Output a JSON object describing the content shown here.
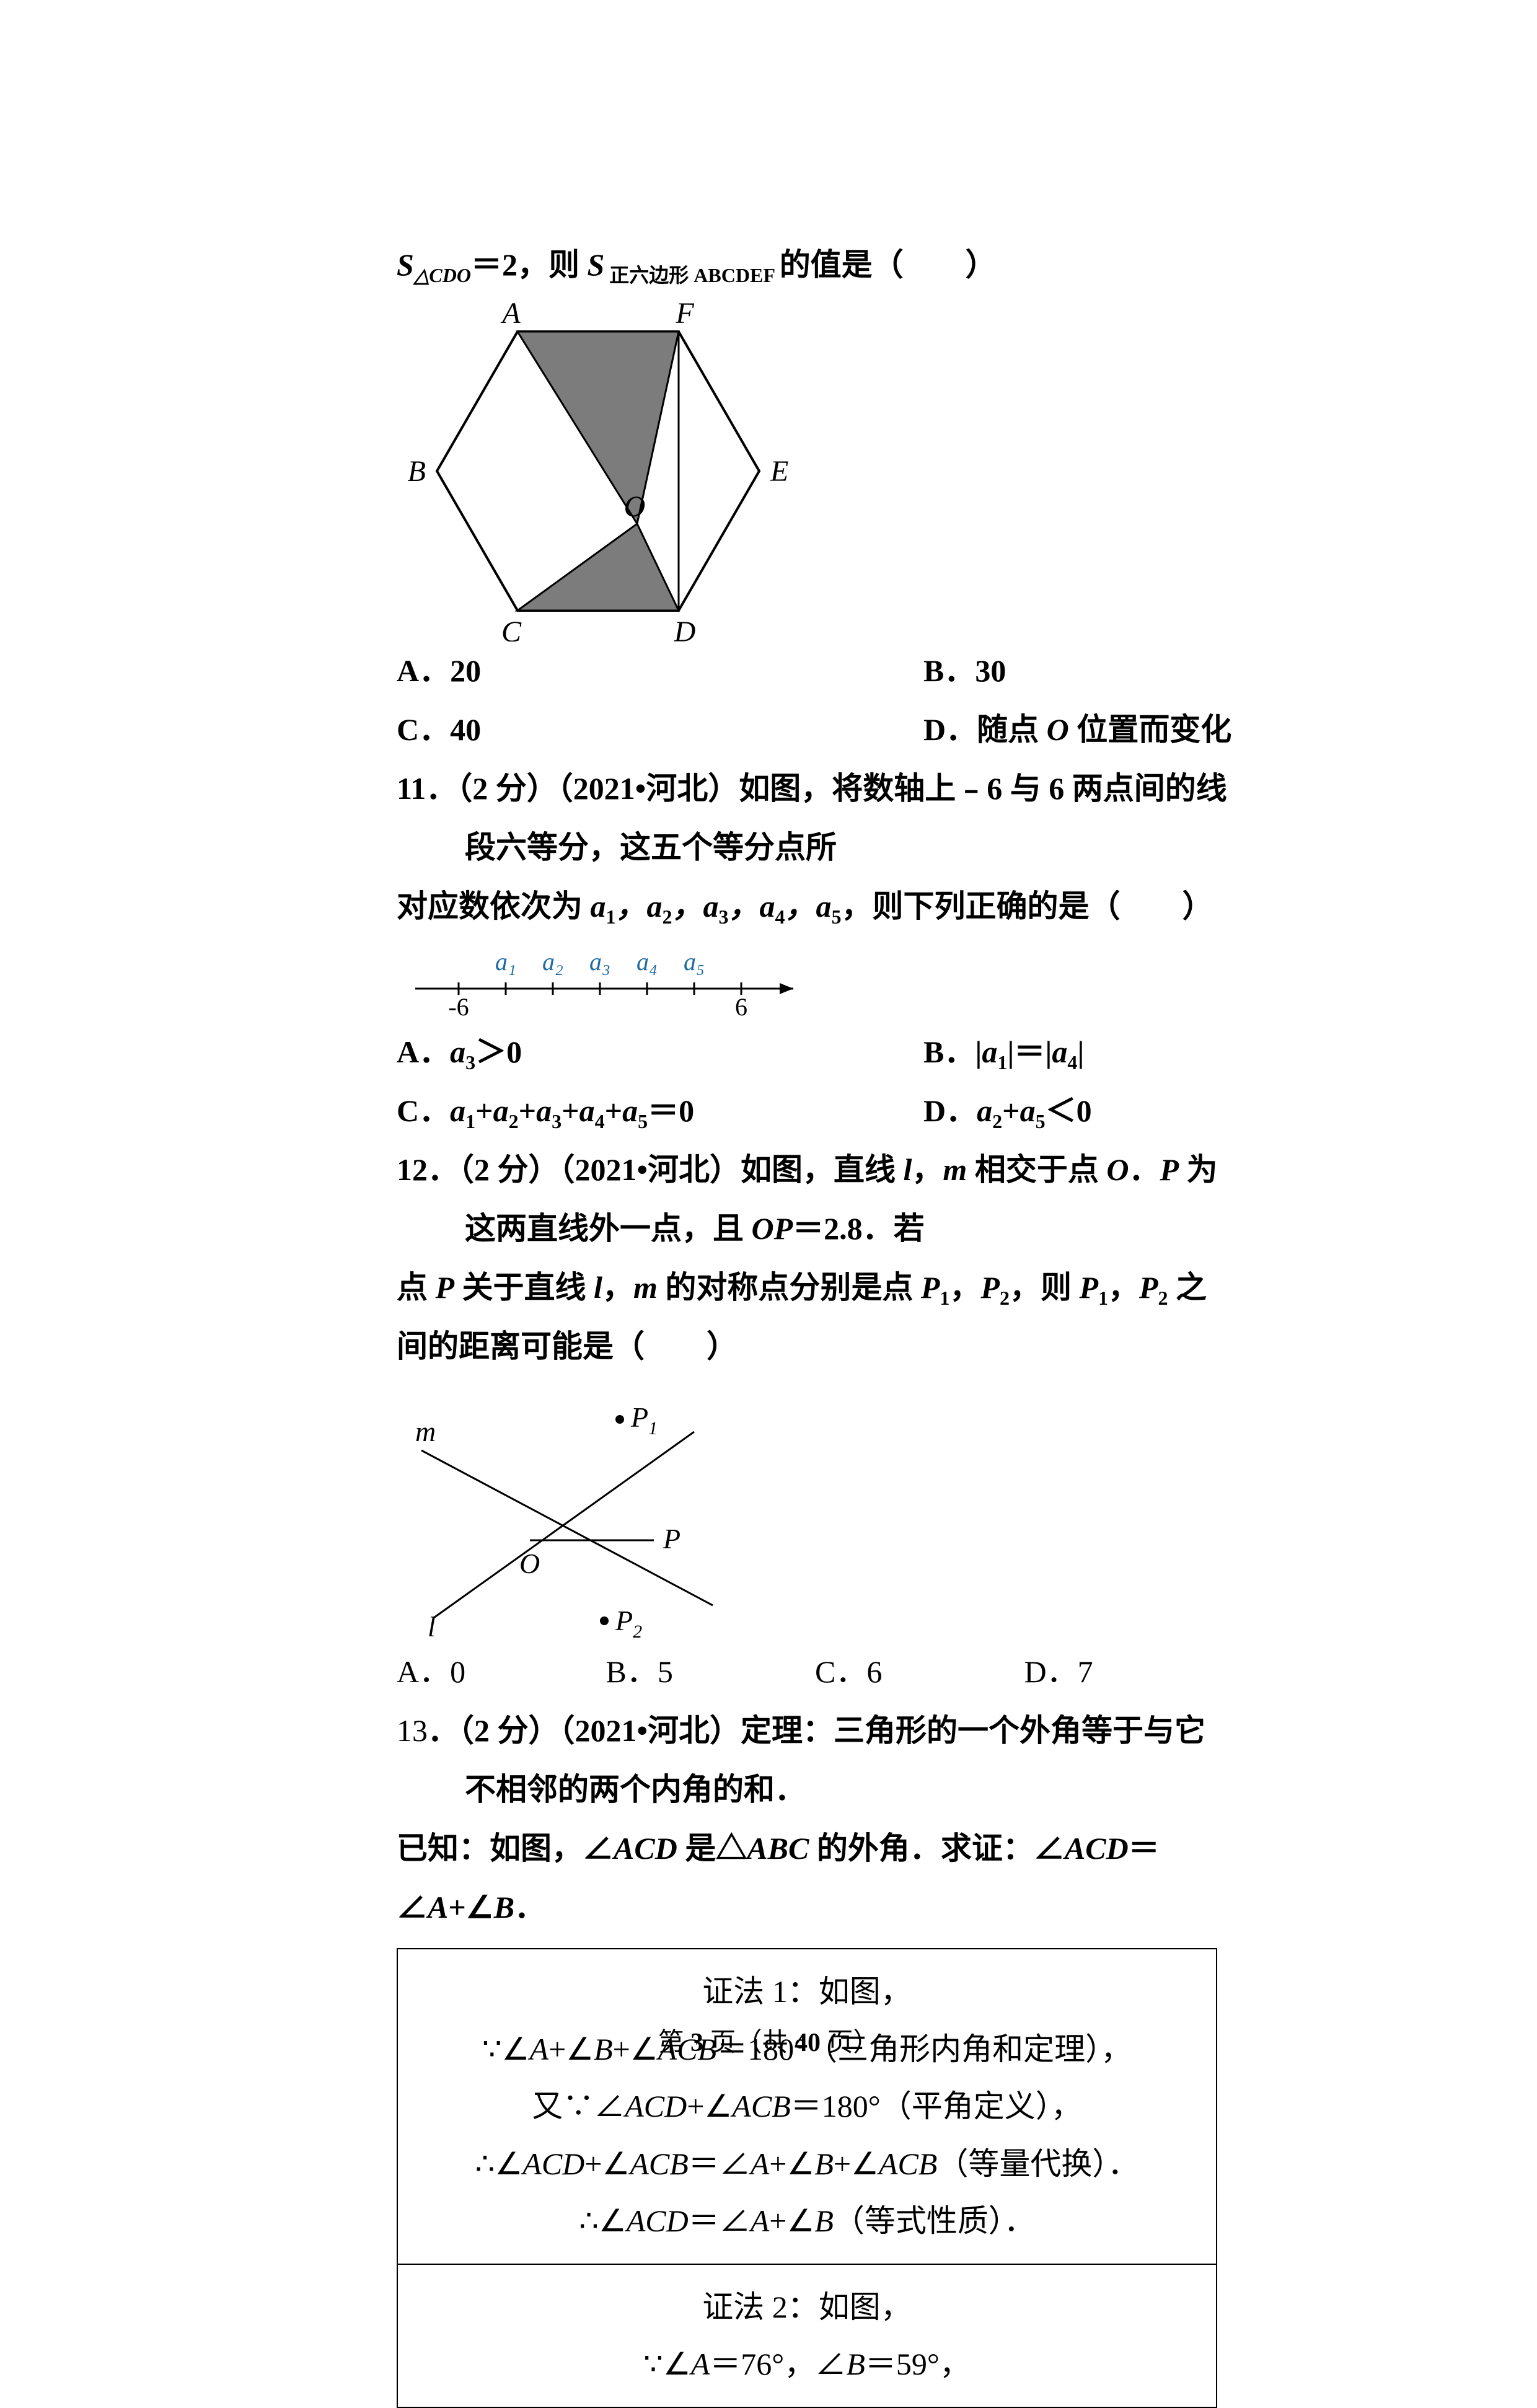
{
  "page": {
    "current": "3",
    "total": "40",
    "prefix": "第 ",
    "mid": " 页（共 ",
    "suffix": " 页）"
  },
  "q10": {
    "frag_line": "S△CDO＝2，则 S 正六边形 ABCDEF 的值是（　　）",
    "frag_prefix": "S",
    "frag_sub1": "△CDO",
    "frag_eq": "＝2，则 ",
    "frag_S2": "S",
    "frag_sub2": " 正六边形 ABCDEF ",
    "frag_tail": "的值是（　　）",
    "hex": {
      "labels": {
        "A": "A",
        "B": "B",
        "C": "C",
        "D": "D",
        "E": "E",
        "F": "F",
        "O": "O"
      },
      "fill": "#7c7c7c",
      "stroke": "#000000",
      "ptsA": [
        195,
        60
      ],
      "ptsB": [
        65,
        285
      ],
      "ptsC": [
        195,
        510
      ],
      "ptsD": [
        455,
        510
      ],
      "ptsE": [
        585,
        285
      ],
      "ptsF": [
        455,
        60
      ],
      "ptsO": [
        388,
        370
      ],
      "label_fontsize": 48
    },
    "optA": "A．20",
    "optB": "B．30",
    "optC": "C．40",
    "optD": "D．随点 O 位置而变化"
  },
  "q11": {
    "line1_pre": "11．（2 分）（2021•河北）如图，将数轴上﹣6 与 6 两点间的线段六等分，这五个等分点所",
    "num": "11",
    "meta": "．（2 分）（2021•河北）如图，将数轴上﹣6 与 6 两点间的线段六等分，这五个等分点所",
    "line2_pre": "对应数依次为 ",
    "seq": "a1，a2，a3，a4，a5",
    "line2_post": "，则下列正确的是（　　）",
    "axis": {
      "labels_top": [
        "a₁",
        "a₂",
        "a₃",
        "a₄",
        "a₅"
      ],
      "lab_left": "-6",
      "lab_right": "6",
      "color_top": "#1d6aa3",
      "color_axis": "#000000"
    },
    "optA_pre": "A．",
    "optA_body": "a3＞0",
    "optB_pre": "B．",
    "optB_body": "|a1|＝|a4|",
    "optC_pre": "C．",
    "optC_body": "a1+a2+a3+a4+a5＝0",
    "optD_pre": "D．",
    "optD_body": "a2+a5＜0"
  },
  "q12": {
    "num": "12",
    "line1": "．（2 分）（2021•河北）如图，直线 l，m 相交于点 O．P 为这两直线外一点，且 OP＝2.8．若",
    "line2_a": "点 ",
    "line2_b": "P",
    "line2_c": " 关于直线 ",
    "line2_d": "l",
    "line2_e": "，",
    "line2_f": "m",
    "line2_g": " 的对称点分别是点 ",
    "line2_h": "P1",
    "line2_i": "，",
    "line2_j": "P2",
    "line2_k": "，则 ",
    "line2_l": "P1",
    "line2_m": "，",
    "line2_n": "P2",
    "line2_o": " 之间的距离可能是（　　）",
    "diag": {
      "m": "m",
      "l": "l",
      "O": "O",
      "P": "P",
      "P1": "P₁",
      "P2": "P₂",
      "stroke": "#000000"
    },
    "optA": "A．0",
    "optB": "B．5",
    "optC": "C．6",
    "optD": "D．7"
  },
  "q13": {
    "num": "13",
    "line1": "．（2 分）（2021•河北）定理：三角形的一个外角等于与它不相邻的两个内角的和．",
    "line2": "已知：如图，∠ACD 是△ABC 的外角．求证：∠ACD＝∠A+∠B．",
    "proof1_title": "证法 1：如图，",
    "proof1_l1": "∵∠A+∠B+∠ACB＝180°（三角形内角和定理），",
    "proof1_l2": "又∵∠ACD+∠ACB＝180°（平角定义），",
    "proof1_l3": "∴∠ACD+∠ACB＝∠A+∠B+∠ACB（等量代换）．",
    "proof1_l4": "∴∠ACD＝∠A+∠B（等式性质）．",
    "proof2_title": "证法 2：如图，",
    "proof2_l1": "∵∠A＝76°，∠B＝59°，"
  }
}
